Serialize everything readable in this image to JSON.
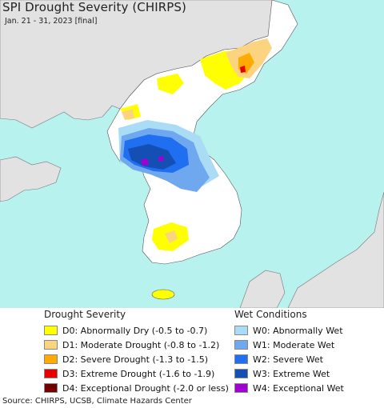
{
  "title": "SPI Drought Severity (CHIRPS)",
  "subtitle": "Jan. 21 - 31, 2023 [final]",
  "drought_legend": {
    "heading": "Drought Severity",
    "items": [
      {
        "label": "D0: Abnormally Dry (-0.5 to -0.7)",
        "color": "#ffff00"
      },
      {
        "label": "D1: Moderate Drought (-0.8 to -1.2)",
        "color": "#fcd37f"
      },
      {
        "label": "D2: Severe Drought (-1.3 to -1.5)",
        "color": "#ffaa00"
      },
      {
        "label": "D3: Extreme Drought (-1.6 to -1.9)",
        "color": "#e60000"
      },
      {
        "label": "D4: Exceptional Drought (-2.0 or less)",
        "color": "#730000"
      }
    ]
  },
  "wet_legend": {
    "heading": "Wet Conditions",
    "items": [
      {
        "label": "W0: Abnormally Wet",
        "color": "#aadcf5"
      },
      {
        "label": "W1: Moderate Wet",
        "color": "#6fa8ee"
      },
      {
        "label": "W2: Severe Wet",
        "color": "#1f6ff0"
      },
      {
        "label": "W3: Extreme Wet",
        "color": "#1450b4"
      },
      {
        "label": "W4: Exceptional Wet",
        "color": "#a000d2"
      }
    ]
  },
  "source": "Source: CHIRPS, UCSB, Climate Hazards Center",
  "colors": {
    "water": "#b8f2ee",
    "land": "#ffffff",
    "outside_land": "#e2e2e2",
    "border": "#555555"
  }
}
